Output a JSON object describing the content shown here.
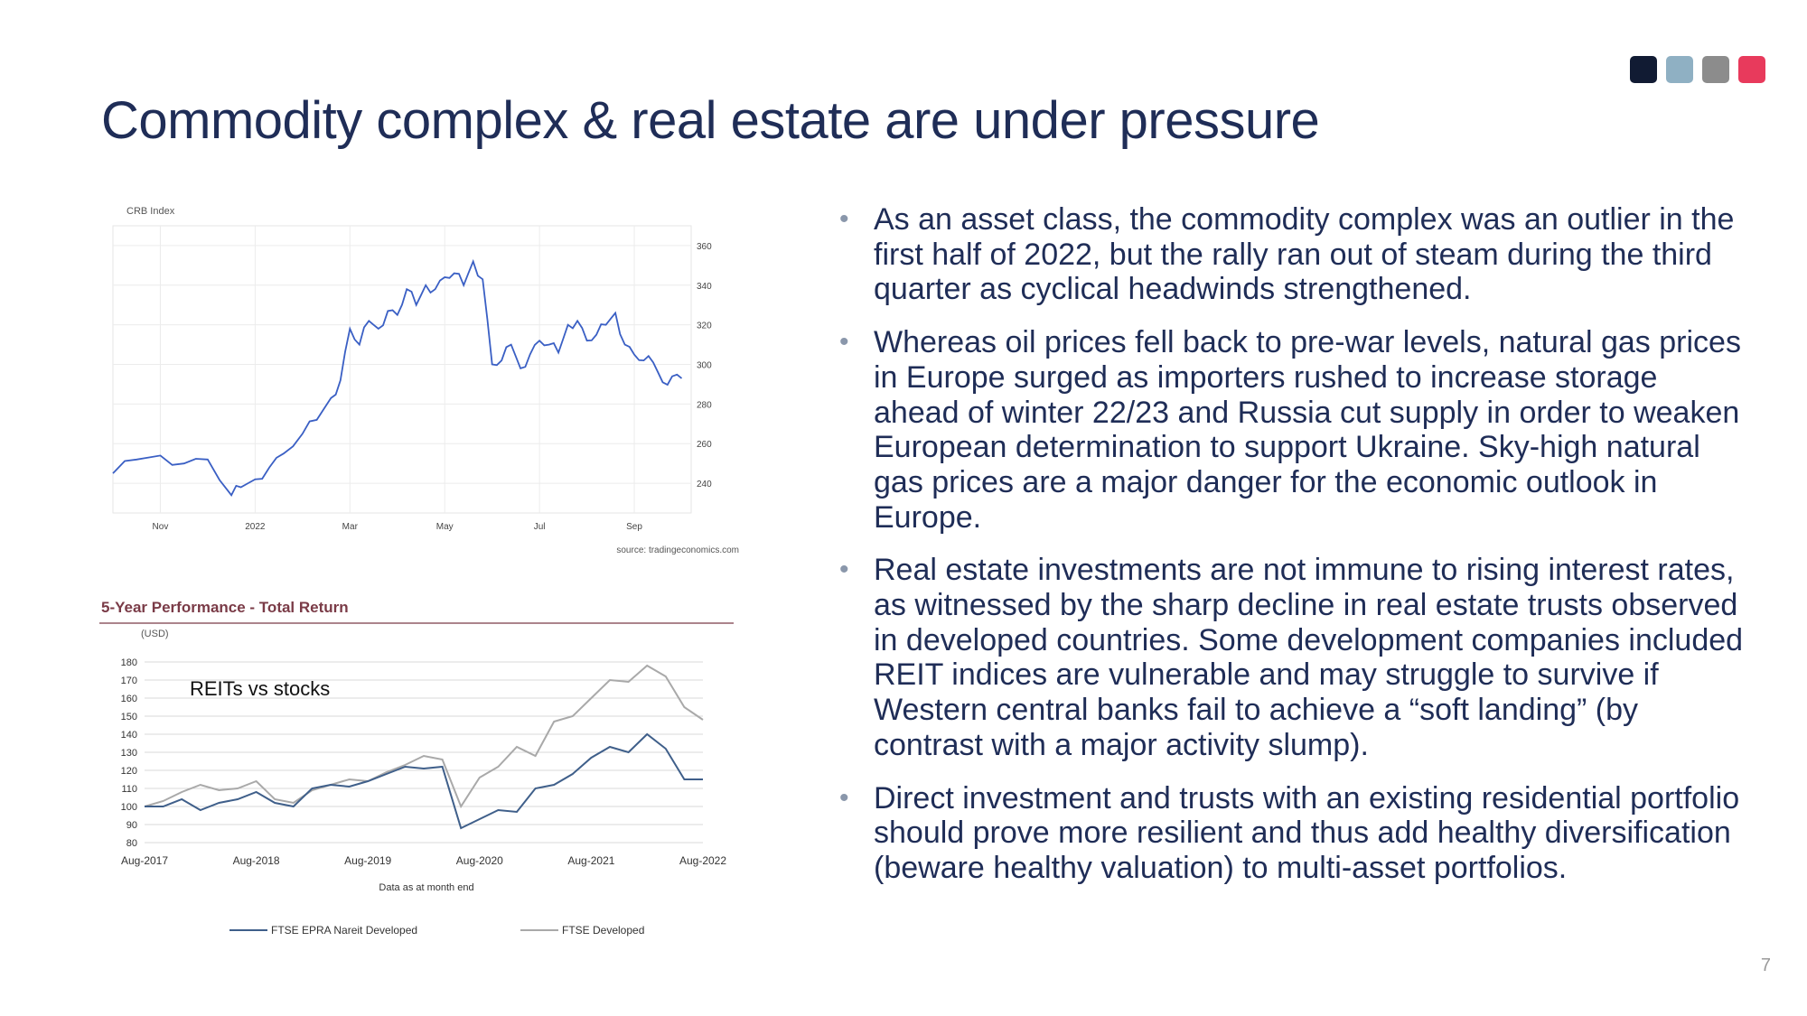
{
  "slide": {
    "title": "Commodity complex & real estate are under pressure",
    "page_number": "7",
    "accent_squares": [
      "#111b33",
      "#8fb0c3",
      "#8c8c8c",
      "#e83a5c"
    ]
  },
  "bullets": [
    "As an asset class, the commodity complex was an outlier in the first half of 2022, but the rally ran out of steam during the third quarter as cyclical headwinds strengthened.",
    "Whereas oil prices fell back to pre-war levels, natural gas prices in Europe surged as importers rushed to increase storage ahead of winter 22/23 and Russia cut supply in order to weaken European determination to support Ukraine. Sky-high natural gas prices are a major danger for the economic outlook in Europe.",
    "Real estate investments are not immune to rising interest rates, as witnessed by the sharp decline in real estate trusts observed in developed countries. Some development companies included REIT indices are vulnerable and may struggle to survive if Western central banks fail to achieve a “soft landing” (by contrast with a major activity slump).",
    "Direct investment and trusts with an existing residential portfolio should prove more resilient and thus add healthy diversification (beware healthy valuation) to multi-asset portfolios."
  ],
  "chart_data": [
    {
      "type": "line",
      "title": "CRB Index",
      "source": "source: tradingeconomics.com",
      "x_tick_labels": [
        "Nov",
        "2022",
        "Mar",
        "May",
        "Jul",
        "Sep"
      ],
      "x_tick_months": [
        1,
        3,
        5,
        7,
        9,
        11
      ],
      "x_range_months": [
        0,
        12.2
      ],
      "y_ticks": [
        240,
        260,
        280,
        300,
        320,
        340,
        360
      ],
      "ylim": [
        225,
        370
      ],
      "grid": true,
      "line_color": "#3a5fc4",
      "series": [
        {
          "x": [
            0,
            0.5,
            1,
            1.5,
            2,
            2.5,
            2.7,
            3,
            3.3,
            3.6,
            4,
            4.3,
            4.6,
            4.8,
            5,
            5.2,
            5.4,
            5.6,
            5.8,
            6,
            6.2,
            6.4,
            6.6,
            6.8,
            7,
            7.2,
            7.4,
            7.6,
            7.8,
            8,
            8.2,
            8.4,
            8.6,
            8.8,
            9,
            9.2,
            9.4,
            9.6,
            9.8,
            10,
            10.2,
            10.4,
            10.6,
            10.8,
            11,
            11.2,
            11.4,
            11.6,
            11.8,
            12
          ],
          "y": [
            245,
            252,
            254,
            250,
            252,
            234,
            238,
            242,
            248,
            255,
            265,
            272,
            283,
            292,
            318,
            310,
            322,
            318,
            327,
            325,
            338,
            330,
            340,
            338,
            344,
            346,
            340,
            352,
            343,
            300,
            302,
            310,
            298,
            305,
            312,
            310,
            306,
            320,
            322,
            312,
            315,
            320,
            326,
            310,
            305,
            302,
            301,
            291,
            294,
            293
          ]
        }
      ]
    },
    {
      "type": "line",
      "title": "5-Year Performance - Total Return",
      "ylabel": "(USD)",
      "annotation": "REITs vs stocks",
      "xlabel": "Data as at month end",
      "x_tick_labels": [
        "Aug-2017",
        "Aug-2018",
        "Aug-2019",
        "Aug-2020",
        "Aug-2021",
        "Aug-2022"
      ],
      "x_range_months": [
        0,
        60
      ],
      "y_ticks": [
        80,
        90,
        100,
        110,
        120,
        130,
        140,
        150,
        160,
        170,
        180
      ],
      "ylim": [
        80,
        180
      ],
      "grid": true,
      "legend_position": "bottom",
      "series": [
        {
          "name": "FTSE EPRA Nareit Developed",
          "color": "#3f5f8a",
          "x": [
            0,
            2,
            4,
            6,
            8,
            10,
            12,
            14,
            16,
            18,
            20,
            22,
            24,
            26,
            28,
            30,
            32,
            34,
            36,
            38,
            40,
            42,
            44,
            46,
            48,
            50,
            52,
            54,
            56,
            58,
            60
          ],
          "y": [
            100,
            100,
            104,
            98,
            102,
            104,
            108,
            102,
            100,
            110,
            112,
            111,
            114,
            118,
            122,
            121,
            122,
            88,
            93,
            98,
            97,
            110,
            112,
            118,
            127,
            133,
            130,
            140,
            132,
            115,
            115
          ]
        },
        {
          "name": "FTSE Developed",
          "color": "#a9a9a9",
          "x": [
            0,
            2,
            4,
            6,
            8,
            10,
            12,
            14,
            16,
            18,
            20,
            22,
            24,
            26,
            28,
            30,
            32,
            34,
            36,
            38,
            40,
            42,
            44,
            46,
            48,
            50,
            52,
            54,
            56,
            58,
            60
          ],
          "y": [
            100,
            103,
            108,
            112,
            109,
            110,
            114,
            104,
            102,
            109,
            112,
            115,
            114,
            119,
            123,
            128,
            126,
            100,
            116,
            122,
            133,
            128,
            147,
            150,
            160,
            170,
            169,
            178,
            172,
            155,
            148
          ]
        }
      ]
    }
  ]
}
